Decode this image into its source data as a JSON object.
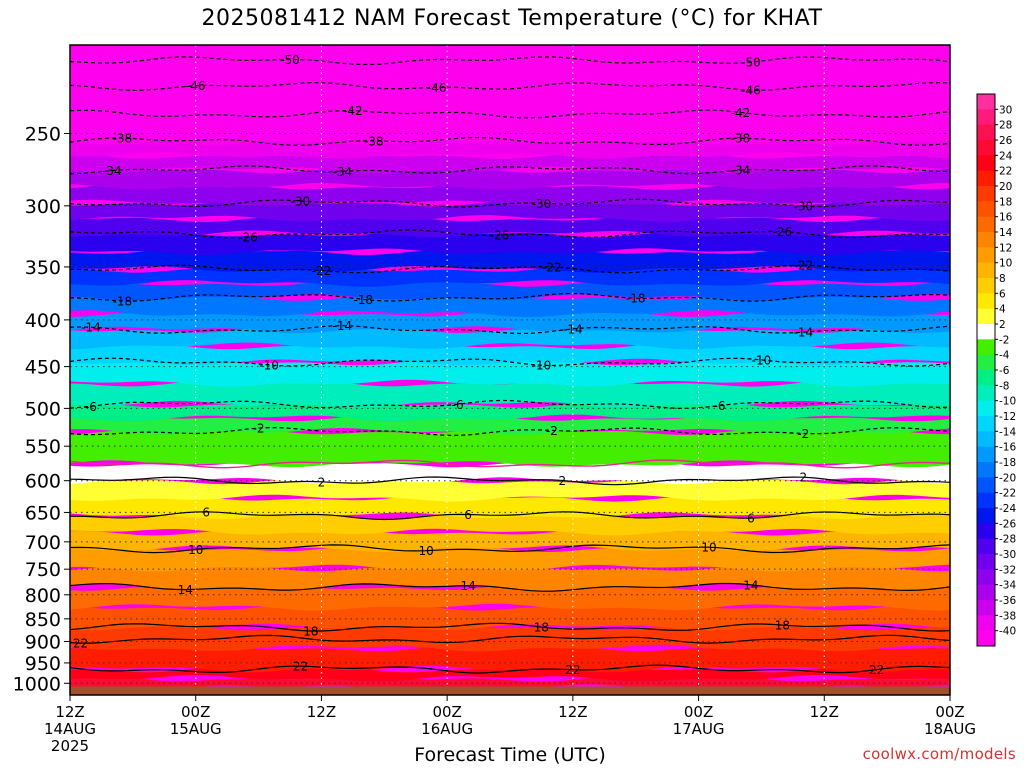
{
  "chart_data": {
    "type": "heatmap",
    "title": "2025081412 NAM Forecast Temperature (°C) for KHAT",
    "xlabel": "Forecast Time (UTC)",
    "ylabel": "",
    "credit": "coolwx.com/models",
    "x_ticks": [
      {
        "hours": 0,
        "l1": "12Z",
        "l2": "14AUG",
        "l3": "2025"
      },
      {
        "hours": 12,
        "l1": "00Z",
        "l2": "15AUG",
        "l3": ""
      },
      {
        "hours": 24,
        "l1": "12Z",
        "l2": "",
        "l3": ""
      },
      {
        "hours": 36,
        "l1": "00Z",
        "l2": "16AUG",
        "l3": ""
      },
      {
        "hours": 48,
        "l1": "12Z",
        "l2": "",
        "l3": ""
      },
      {
        "hours": 60,
        "l1": "00Z",
        "l2": "17AUG",
        "l3": ""
      },
      {
        "hours": 72,
        "l1": "12Z",
        "l2": "",
        "l3": ""
      },
      {
        "hours": 84,
        "l1": "00Z",
        "l2": "18AUG",
        "l3": ""
      }
    ],
    "x_range_hours": [
      0,
      84
    ],
    "y_axis": "pressure (hPa), log scale, inverted",
    "y_range": [
      1030,
      200
    ],
    "y_ticks": [
      250,
      300,
      350,
      400,
      450,
      500,
      550,
      600,
      650,
      700,
      750,
      800,
      850,
      900,
      950,
      1000
    ],
    "ground_level_hpa": 1008,
    "colorbar": {
      "labels": [
        30,
        28,
        26,
        24,
        22,
        20,
        18,
        16,
        14,
        12,
        10,
        8,
        6,
        4,
        2,
        -2,
        -4,
        -6,
        -8,
        -10,
        -12,
        -14,
        -16,
        -18,
        -20,
        -22,
        -24,
        -26,
        -28,
        -30,
        -32,
        -34,
        -36,
        -38,
        -40
      ],
      "colors": [
        "#ff2f9f",
        "#ff1b7a",
        "#ff1050",
        "#ff0a32",
        "#ff0018",
        "#ff1c00",
        "#ff3a00",
        "#ff5200",
        "#ff6a00",
        "#ff8400",
        "#ff9c00",
        "#ffb400",
        "#ffce00",
        "#ffe800",
        "#ffff33",
        "#ffffff",
        "#44ee00",
        "#22ee44",
        "#00ee88",
        "#00eebb",
        "#00eeee",
        "#00d6ff",
        "#00bbff",
        "#0099ff",
        "#0077ff",
        "#0055ff",
        "#0033ff",
        "#0016ee",
        "#2a00ee",
        "#5000ee",
        "#7000ee",
        "#8e00ee",
        "#aa00ee",
        "#cc00ee",
        "#ee00ee",
        "#ff00ee"
      ]
    },
    "contours": [
      {
        "value": 22,
        "dashed": false,
        "hpa": 965,
        "labels_hours": [
          22,
          48,
          77
        ]
      },
      {
        "value": 22,
        "dashed": false,
        "hpa": 895,
        "labels_hours": [
          1
        ]
      },
      {
        "value": 18,
        "dashed": false,
        "hpa": 868,
        "labels_hours": [
          23,
          45,
          68
        ]
      },
      {
        "value": 14,
        "dashed": false,
        "hpa": 785,
        "labels_hours": [
          11,
          38,
          65
        ]
      },
      {
        "value": 10,
        "dashed": false,
        "hpa": 712,
        "labels_hours": [
          12,
          34,
          61
        ]
      },
      {
        "value": 6,
        "dashed": false,
        "hpa": 655,
        "labels_hours": [
          13,
          38,
          65
        ]
      },
      {
        "value": 2,
        "dashed": false,
        "hpa": 600,
        "labels_hours": [
          24,
          47,
          70
        ]
      },
      {
        "value": 0,
        "dashed": false,
        "magenta": true,
        "hpa": 575,
        "labels_hours": []
      },
      {
        "value": -2,
        "dashed": true,
        "hpa": 530,
        "labels_hours": [
          18,
          46,
          70
        ]
      },
      {
        "value": -6,
        "dashed": true,
        "hpa": 495,
        "labels_hours": [
          2,
          37,
          62
        ]
      },
      {
        "value": -10,
        "dashed": true,
        "hpa": 445,
        "labels_hours": [
          19,
          45,
          66
        ]
      },
      {
        "value": -14,
        "dashed": true,
        "hpa": 410,
        "labels_hours": [
          2,
          26,
          48,
          70
        ]
      },
      {
        "value": -18,
        "dashed": true,
        "hpa": 378,
        "labels_hours": [
          5,
          28,
          54
        ]
      },
      {
        "value": -22,
        "dashed": true,
        "hpa": 352,
        "labels_hours": [
          24,
          46,
          70
        ]
      },
      {
        "value": -26,
        "dashed": true,
        "hpa": 322,
        "labels_hours": [
          17,
          41,
          68
        ]
      },
      {
        "value": -30,
        "dashed": true,
        "hpa": 298,
        "labels_hours": [
          22,
          45,
          70
        ]
      },
      {
        "value": -34,
        "dashed": true,
        "hpa": 274,
        "labels_hours": [
          4,
          26,
          64
        ]
      },
      {
        "value": -38,
        "dashed": true,
        "hpa": 255,
        "labels_hours": [
          5,
          29,
          64
        ]
      },
      {
        "value": -42,
        "dashed": true,
        "hpa": 238,
        "labels_hours": [
          27,
          64
        ]
      },
      {
        "value": -46,
        "dashed": true,
        "hpa": 222,
        "labels_hours": [
          12,
          35,
          65
        ]
      },
      {
        "value": -50,
        "dashed": true,
        "hpa": 208,
        "labels_hours": [
          21,
          65
        ]
      }
    ]
  }
}
